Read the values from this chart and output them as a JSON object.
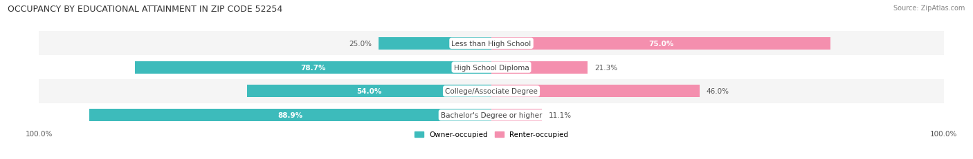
{
  "title": "OCCUPANCY BY EDUCATIONAL ATTAINMENT IN ZIP CODE 52254",
  "source": "Source: ZipAtlas.com",
  "categories": [
    "Less than High School",
    "High School Diploma",
    "College/Associate Degree",
    "Bachelor's Degree or higher"
  ],
  "owner_pct": [
    25.0,
    78.7,
    54.0,
    88.9
  ],
  "renter_pct": [
    75.0,
    21.3,
    46.0,
    11.1
  ],
  "owner_color": "#3DBBBB",
  "renter_color": "#F48FAE",
  "row_bg_even": "#F5F5F5",
  "row_bg_odd": "#FFFFFF",
  "title_fontsize": 9,
  "label_fontsize": 7.5,
  "pct_fontsize": 7.5,
  "source_fontsize": 7,
  "legend_fontsize": 7.5,
  "bar_height": 0.52,
  "figsize": [
    14.06,
    2.32
  ],
  "dpi": 100
}
